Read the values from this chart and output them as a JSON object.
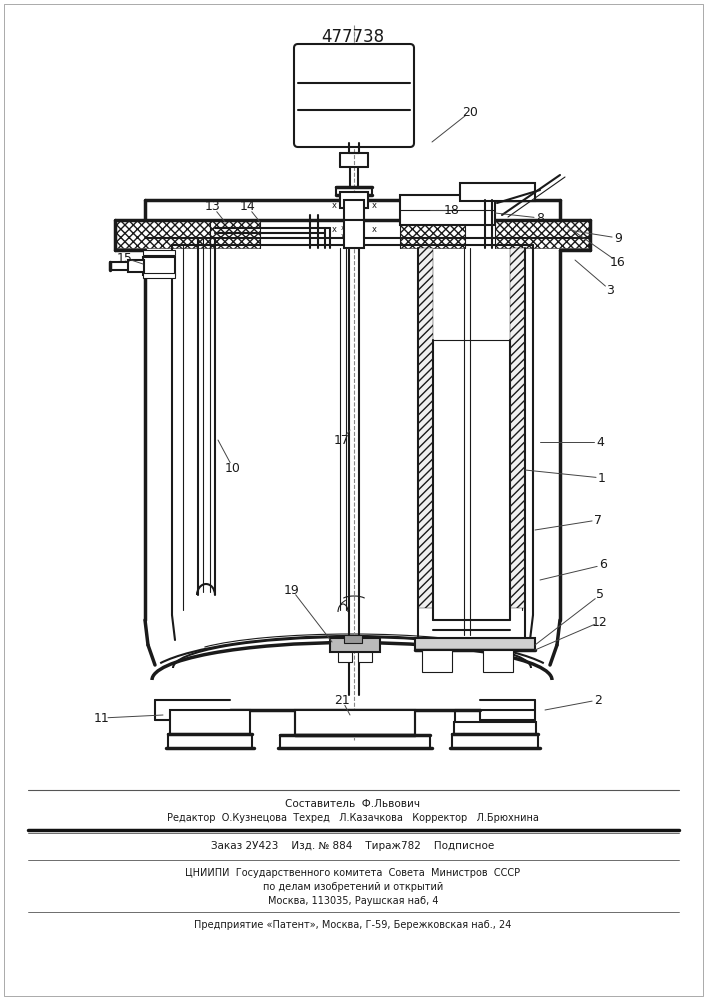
{
  "patent_number": "477738",
  "bg_color": "#ffffff",
  "lc": "#1a1a1a",
  "footer": {
    "line1": "Составитель  Ф.Львович",
    "line2": "Редактор  О.Кузнецова  Техред   Л.Казачкова   Корректор   Л.Брюхнина",
    "line3": "Заказ 2У423    Изд. № 884    Тираж782    Подписное",
    "line4": "ЦНИИПИ  Государственного комитета  Совета  Министров  СССР",
    "line5": "по делам изобретений и открытий",
    "line6": "Москва, 113035, Раушская наб, 4",
    "line7": "Предприятие «Патент», Москва, Г-59, Бережковская наб., 24"
  },
  "lw_thin": 0.8,
  "lw_main": 1.5,
  "lw_thick": 2.5
}
